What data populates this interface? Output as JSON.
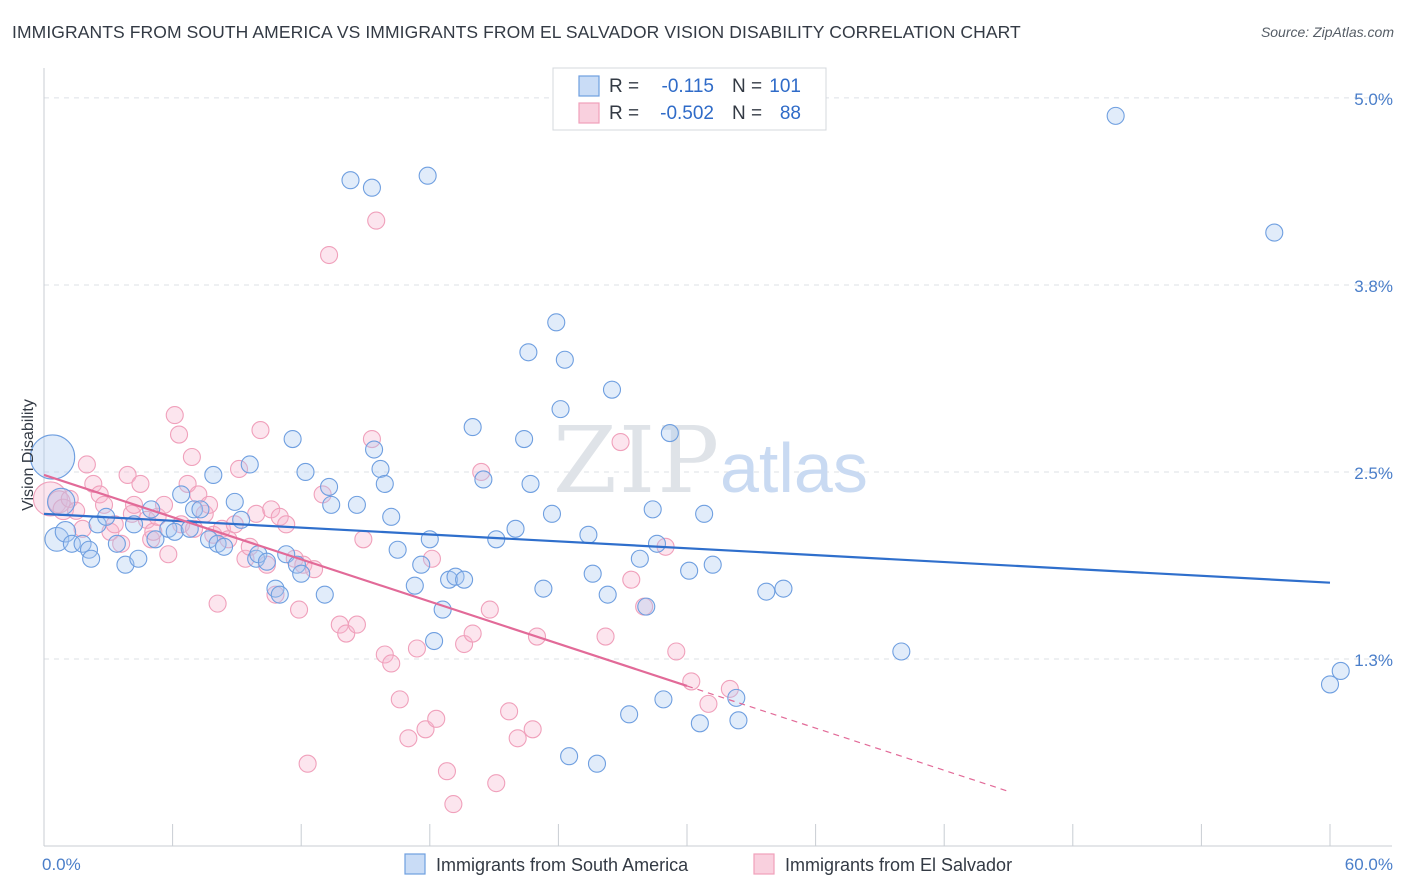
{
  "title": "IMMIGRANTS FROM SOUTH AMERICA VS IMMIGRANTS FROM EL SALVADOR VISION DISABILITY CORRELATION CHART",
  "source": "Source: ZipAtlas.com",
  "watermark": {
    "zip": "ZIP",
    "atlas": "atlas"
  },
  "legend": {
    "rows": [
      {
        "r_label": "R =",
        "r_value": "-0.115",
        "n_label": "N =",
        "n_value": "101"
      },
      {
        "r_label": "R =",
        "r_value": "-0.502",
        "n_label": "N =",
        "n_value": "88"
      }
    ]
  },
  "chart_data": {
    "type": "scatter",
    "ylabel": "Vision Disability",
    "xlim": [
      0,
      60
    ],
    "ylim": [
      0,
      5.2
    ],
    "y_ticks": [
      {
        "value": 5.0,
        "label": "5.0%"
      },
      {
        "value": 3.75,
        "label": "3.8%"
      },
      {
        "value": 2.5,
        "label": "2.5%"
      },
      {
        "value": 1.25,
        "label": "1.3%"
      }
    ],
    "x_tick_labels": [
      {
        "value": 0,
        "label": "0.0%"
      },
      {
        "value": 60,
        "label": "60.0%"
      }
    ],
    "grid": true,
    "legend_position": "top-center",
    "series": [
      {
        "name": "Immigrants from South America",
        "color": "#6f9fe0",
        "line_color": "#2f6fcc",
        "trend": {
          "x0": 0,
          "y0": 2.22,
          "x1": 60,
          "y1": 1.76,
          "solid_to": 60
        },
        "points": [
          [
            0.4,
            2.6,
            2.6
          ],
          [
            0.8,
            2.3,
            1.6
          ],
          [
            0.6,
            2.05,
            1.4
          ],
          [
            1.0,
            2.1,
            1.2
          ],
          [
            1.3,
            2.02,
            1.0
          ],
          [
            1.8,
            2.02,
            1.0
          ],
          [
            2.1,
            1.98,
            1.0
          ],
          [
            2.2,
            1.92,
            1.0
          ],
          [
            2.5,
            2.15,
            1.0
          ],
          [
            2.9,
            2.2,
            1.0
          ],
          [
            3.4,
            2.02,
            1.0
          ],
          [
            3.8,
            1.88,
            1.0
          ],
          [
            4.2,
            2.15,
            1.0
          ],
          [
            4.4,
            1.92,
            1.0
          ],
          [
            5.0,
            2.25,
            1.0
          ],
          [
            5.2,
            2.05,
            1.0
          ],
          [
            5.8,
            2.12,
            1.0
          ],
          [
            6.1,
            2.1,
            1.0
          ],
          [
            6.4,
            2.35,
            1.0
          ],
          [
            6.8,
            2.12,
            1.0
          ],
          [
            7.0,
            2.25,
            1.0
          ],
          [
            7.3,
            2.25,
            1.0
          ],
          [
            7.7,
            2.05,
            1.0
          ],
          [
            7.9,
            2.48,
            1.0
          ],
          [
            8.1,
            2.02,
            1.0
          ],
          [
            8.4,
            2.0,
            1.0
          ],
          [
            8.9,
            2.3,
            1.0
          ],
          [
            9.2,
            2.18,
            1.0
          ],
          [
            9.6,
            2.55,
            1.0
          ],
          [
            9.9,
            1.92,
            1.0
          ],
          [
            10.0,
            1.95,
            1.0
          ],
          [
            10.4,
            1.9,
            1.0
          ],
          [
            10.8,
            1.72,
            1.0
          ],
          [
            11.0,
            1.68,
            1.0
          ],
          [
            11.3,
            1.95,
            1.0
          ],
          [
            11.6,
            2.72,
            1.0
          ],
          [
            11.8,
            1.88,
            1.0
          ],
          [
            12.0,
            1.82,
            1.0
          ],
          [
            12.2,
            2.5,
            1.0
          ],
          [
            13.1,
            1.68,
            1.0
          ],
          [
            13.3,
            2.4,
            1.0
          ],
          [
            13.4,
            2.28,
            1.0
          ],
          [
            14.3,
            4.45,
            1.0
          ],
          [
            14.6,
            2.28,
            1.0
          ],
          [
            15.3,
            4.4,
            1.0
          ],
          [
            15.4,
            2.65,
            1.0
          ],
          [
            15.7,
            2.52,
            1.0
          ],
          [
            15.9,
            2.42,
            1.0
          ],
          [
            16.2,
            2.2,
            1.0
          ],
          [
            16.5,
            1.98,
            1.0
          ],
          [
            17.3,
            1.74,
            1.0
          ],
          [
            17.6,
            1.88,
            1.0
          ],
          [
            17.9,
            4.48,
            1.0
          ],
          [
            18.0,
            2.05,
            1.0
          ],
          [
            18.2,
            1.37,
            1.0
          ],
          [
            18.6,
            1.58,
            1.0
          ],
          [
            18.9,
            1.78,
            1.0
          ],
          [
            19.2,
            1.8,
            1.0
          ],
          [
            19.6,
            1.78,
            1.0
          ],
          [
            20.0,
            2.8,
            1.0
          ],
          [
            20.5,
            2.45,
            1.0
          ],
          [
            21.1,
            2.05,
            1.0
          ],
          [
            22.0,
            2.12,
            1.0
          ],
          [
            22.4,
            2.72,
            1.0
          ],
          [
            22.6,
            3.3,
            1.0
          ],
          [
            22.7,
            2.42,
            1.0
          ],
          [
            23.3,
            1.72,
            1.0
          ],
          [
            23.7,
            2.22,
            1.0
          ],
          [
            23.9,
            3.5,
            1.0
          ],
          [
            24.1,
            2.92,
            1.0
          ],
          [
            24.3,
            3.25,
            1.0
          ],
          [
            24.5,
            0.6,
            1.0
          ],
          [
            25.4,
            2.08,
            1.0
          ],
          [
            25.6,
            1.82,
            1.0
          ],
          [
            25.8,
            0.55,
            1.0
          ],
          [
            26.3,
            1.68,
            1.0
          ],
          [
            26.5,
            3.05,
            1.0
          ],
          [
            27.3,
            0.88,
            1.0
          ],
          [
            27.8,
            1.92,
            1.0
          ],
          [
            28.1,
            1.6,
            1.0
          ],
          [
            28.4,
            2.25,
            1.0
          ],
          [
            28.6,
            2.02,
            1.0
          ],
          [
            28.9,
            0.98,
            1.0
          ],
          [
            29.2,
            2.76,
            1.0
          ],
          [
            30.1,
            1.84,
            1.0
          ],
          [
            30.6,
            0.82,
            1.0
          ],
          [
            30.8,
            2.22,
            1.0
          ],
          [
            31.2,
            1.88,
            1.0
          ],
          [
            32.3,
            0.99,
            1.0
          ],
          [
            32.4,
            0.84,
            1.0
          ],
          [
            33.7,
            1.7,
            1.0
          ],
          [
            34.5,
            1.72,
            1.0
          ],
          [
            40.0,
            1.3,
            1.0
          ],
          [
            50.0,
            4.88,
            1.0
          ],
          [
            57.4,
            4.1,
            1.0
          ],
          [
            60.0,
            1.08,
            1.0
          ],
          [
            60.5,
            1.17,
            1.0
          ]
        ]
      },
      {
        "name": "Immigrants from El Salvador",
        "color": "#f0a0bb",
        "line_color": "#e26a98",
        "trend": {
          "x0": 0,
          "y0": 2.48,
          "x1": 60,
          "y1": -0.34,
          "solid_to": 30
        },
        "points": [
          [
            0.3,
            2.32,
            2.0
          ],
          [
            0.7,
            2.3,
            1.3
          ],
          [
            0.9,
            2.25,
            1.2
          ],
          [
            1.2,
            2.32,
            1.0
          ],
          [
            1.5,
            2.24,
            1.0
          ],
          [
            1.8,
            2.12,
            1.0
          ],
          [
            2.0,
            2.55,
            1.0
          ],
          [
            2.3,
            2.42,
            1.0
          ],
          [
            2.6,
            2.35,
            1.0
          ],
          [
            2.8,
            2.28,
            1.0
          ],
          [
            3.1,
            2.1,
            1.0
          ],
          [
            3.3,
            2.15,
            1.0
          ],
          [
            3.6,
            2.02,
            1.0
          ],
          [
            3.9,
            2.48,
            1.0
          ],
          [
            4.1,
            2.22,
            1.0
          ],
          [
            4.2,
            2.28,
            1.0
          ],
          [
            4.5,
            2.42,
            1.0
          ],
          [
            4.8,
            2.18,
            1.0
          ],
          [
            5.0,
            2.05,
            1.0
          ],
          [
            5.1,
            2.1,
            1.0
          ],
          [
            5.3,
            2.2,
            1.0
          ],
          [
            5.6,
            2.28,
            1.0
          ],
          [
            5.8,
            1.95,
            1.0
          ],
          [
            6.1,
            2.88,
            1.0
          ],
          [
            6.3,
            2.75,
            1.0
          ],
          [
            6.4,
            2.15,
            1.0
          ],
          [
            6.7,
            2.42,
            1.0
          ],
          [
            6.9,
            2.6,
            1.0
          ],
          [
            7.0,
            2.12,
            1.0
          ],
          [
            7.2,
            2.35,
            1.0
          ],
          [
            7.5,
            2.22,
            1.0
          ],
          [
            7.7,
            2.28,
            1.0
          ],
          [
            7.9,
            2.08,
            1.0
          ],
          [
            8.1,
            1.62,
            1.0
          ],
          [
            8.3,
            2.12,
            1.0
          ],
          [
            8.6,
            2.05,
            1.0
          ],
          [
            8.9,
            2.15,
            1.0
          ],
          [
            9.1,
            2.52,
            1.0
          ],
          [
            9.4,
            1.92,
            1.0
          ],
          [
            9.6,
            2.0,
            1.0
          ],
          [
            9.9,
            2.22,
            1.0
          ],
          [
            10.1,
            2.78,
            1.0
          ],
          [
            10.4,
            1.88,
            1.0
          ],
          [
            10.6,
            2.25,
            1.0
          ],
          [
            10.8,
            1.68,
            1.0
          ],
          [
            11.0,
            2.2,
            1.0
          ],
          [
            11.3,
            2.15,
            1.0
          ],
          [
            11.7,
            1.92,
            1.0
          ],
          [
            11.9,
            1.58,
            1.0
          ],
          [
            12.1,
            1.88,
            1.0
          ],
          [
            12.3,
            0.55,
            1.0
          ],
          [
            12.6,
            1.85,
            1.0
          ],
          [
            13.0,
            2.35,
            1.0
          ],
          [
            13.3,
            3.95,
            1.0
          ],
          [
            13.8,
            1.48,
            1.0
          ],
          [
            14.1,
            1.42,
            1.0
          ],
          [
            14.6,
            1.48,
            1.0
          ],
          [
            14.9,
            2.05,
            1.0
          ],
          [
            15.3,
            2.72,
            1.0
          ],
          [
            15.5,
            4.18,
            1.0
          ],
          [
            15.9,
            1.28,
            1.0
          ],
          [
            16.2,
            1.22,
            1.0
          ],
          [
            16.6,
            0.98,
            1.0
          ],
          [
            17.0,
            0.72,
            1.0
          ],
          [
            17.4,
            1.32,
            1.0
          ],
          [
            17.8,
            0.78,
            1.0
          ],
          [
            18.1,
            1.92,
            1.0
          ],
          [
            18.3,
            0.85,
            1.0
          ],
          [
            18.8,
            0.5,
            1.0
          ],
          [
            19.1,
            0.28,
            1.0
          ],
          [
            19.6,
            1.35,
            1.0
          ],
          [
            20.0,
            1.42,
            1.0
          ],
          [
            20.4,
            2.5,
            1.0
          ],
          [
            20.8,
            1.58,
            1.0
          ],
          [
            21.1,
            0.42,
            1.0
          ],
          [
            21.7,
            0.9,
            1.0
          ],
          [
            22.1,
            0.72,
            1.0
          ],
          [
            22.8,
            0.78,
            1.0
          ],
          [
            23.0,
            1.4,
            1.0
          ],
          [
            26.2,
            1.4,
            1.0
          ],
          [
            26.9,
            2.7,
            1.0
          ],
          [
            27.4,
            1.78,
            1.0
          ],
          [
            28.0,
            1.6,
            1.0
          ],
          [
            29.0,
            2.0,
            1.0
          ],
          [
            29.5,
            1.3,
            1.0
          ],
          [
            30.2,
            1.1,
            1.0
          ],
          [
            31.0,
            0.95,
            1.0
          ],
          [
            32.0,
            1.05,
            1.0
          ]
        ]
      }
    ]
  }
}
